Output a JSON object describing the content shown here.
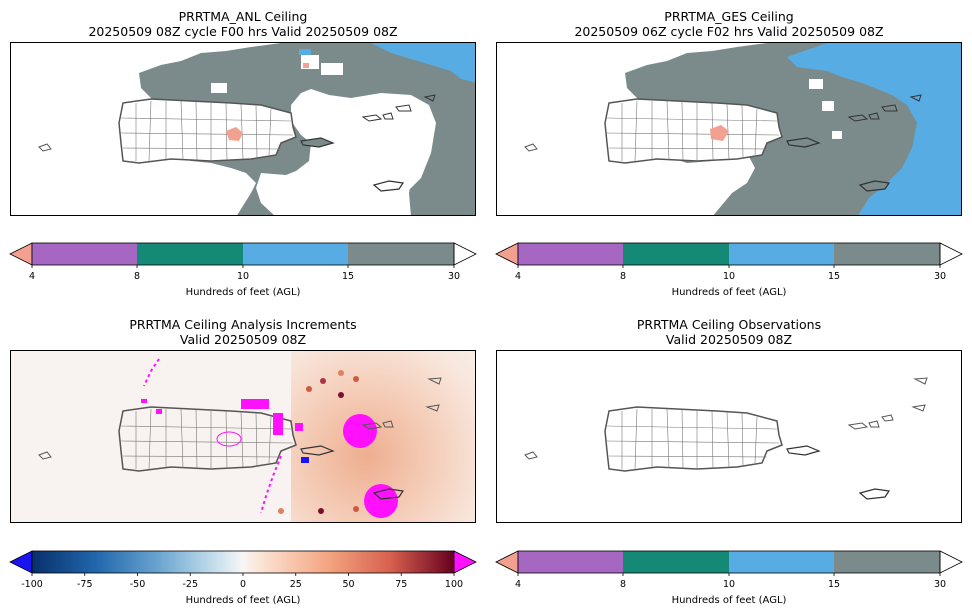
{
  "panels": [
    {
      "title_line1": "PRRTMA_ANL Ceiling",
      "title_line2": "20250509 08Z cycle F00 hrs Valid 20250509 08Z"
    },
    {
      "title_line1": "PRRTMA_GES Ceiling",
      "title_line2": "20250509 06Z cycle F02 hrs Valid 20250509 08Z"
    },
    {
      "title_line1": "PRRTMA Ceiling Analysis Increments",
      "title_line2": "Valid 20250509 08Z"
    },
    {
      "title_line1": "PRRTMA Ceiling Observations",
      "title_line2": "Valid 20250509 08Z"
    }
  ],
  "colorbar_ceiling": {
    "label": "Hundreds of feet (AGL)",
    "ticks": [
      "4",
      "8",
      "10",
      "15",
      "30"
    ],
    "colors": {
      "under": "#f2a08f",
      "c4_8": "#a567c1",
      "c8_10": "#148a76",
      "c10_15": "#57ace3",
      "c15_30": "#7b8b8c",
      "over": "#ffffff"
    }
  },
  "colorbar_increment": {
    "label": "Hundreds of feet (AGL)",
    "ticks": [
      "-100",
      "-75",
      "-50",
      "-25",
      "0",
      "25",
      "50",
      "75",
      "100"
    ],
    "colors": {
      "under": "#1a14f0",
      "over": "#ff10ff"
    }
  },
  "colors": {
    "gray": "#7b8b8c",
    "blue": "#57ace3",
    "salmon": "#f2a08f",
    "magenta": "#ff10ff",
    "coast": "#555555"
  }
}
